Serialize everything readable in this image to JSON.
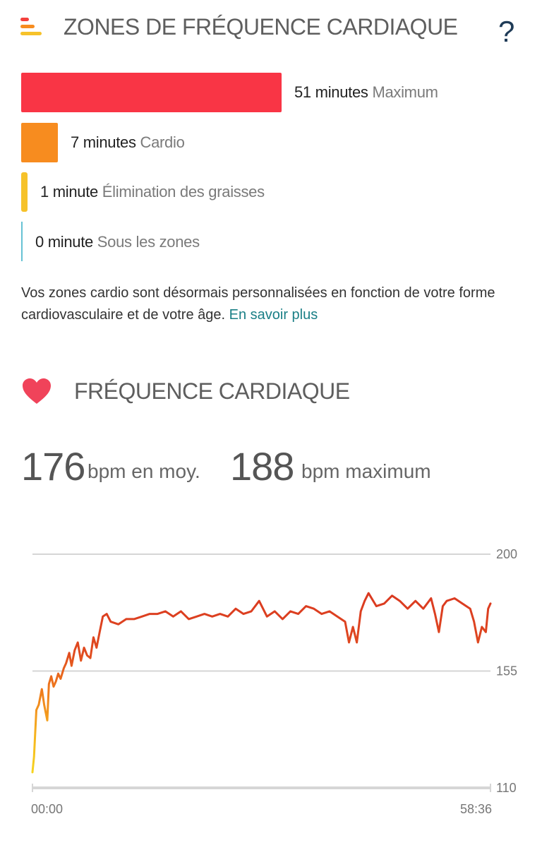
{
  "header": {
    "title": "ZONES DE FRÉQUENCE CARDIAQUE",
    "help_label": "?",
    "icon": "zones-bars-icon"
  },
  "zones": [
    {
      "value": "51 minutes",
      "name": "Maximum",
      "minutes": 51,
      "color": "#f93545"
    },
    {
      "value": "7 minutes",
      "name": "Cardio",
      "minutes": 7,
      "color": "#f78c1f"
    },
    {
      "value": "1 minute",
      "name": "Élimination des graisses",
      "minutes": 1,
      "color": "#f6c22a"
    },
    {
      "value": "0 minute",
      "name": "Sous les zones",
      "minutes": 0,
      "color": "#66c2d4"
    }
  ],
  "description": {
    "text": "Vos zones cardio sont désormais personnalisées en fonction de votre forme cardiovasculaire et de votre âge.",
    "link": "En savoir plus"
  },
  "heart_rate": {
    "title": "FRÉQUENCE CARDIAQUE",
    "icon": "heart-icon",
    "avg_value": "176",
    "avg_unit": "bpm en moy.",
    "max_value": "188",
    "max_unit": "bpm maximum"
  },
  "chart_data": {
    "type": "line",
    "x_start_label": "00:00",
    "x_end_label": "58:36",
    "xlim_minutes": [
      0,
      58.6
    ],
    "ylim": [
      110,
      200
    ],
    "y_ticks": [
      "200",
      "155",
      "110"
    ],
    "grid": true,
    "series": [
      {
        "x": [
          0,
          0.2,
          0.3,
          0.5,
          0.8,
          1.2,
          1.5,
          1.9,
          2.1,
          2.4,
          2.7,
          3.0,
          3.3,
          3.6,
          4.0,
          4.3,
          4.7,
          5.0,
          5.4,
          5.8,
          6.2,
          6.6,
          7.0,
          7.4,
          7.8,
          8.2,
          8.6,
          9.0,
          9.5,
          10,
          11,
          12,
          13,
          14,
          15,
          16,
          17,
          18,
          19,
          20,
          21,
          22,
          23,
          24,
          25,
          26,
          27,
          28,
          29,
          30,
          31,
          32,
          33,
          34,
          35,
          36,
          37,
          38,
          39,
          40,
          40.5,
          41,
          41.5,
          42,
          42.5,
          43,
          44,
          45,
          46,
          47,
          48,
          49,
          50,
          51,
          51.5,
          52,
          52.5,
          53,
          54,
          55,
          56,
          56.5,
          57,
          57.5,
          58,
          58.3,
          58.6
        ],
        "y": [
          116,
          122,
          128,
          140,
          142,
          148,
          142,
          136,
          150,
          153,
          149,
          151,
          154,
          152,
          156,
          158,
          162,
          157,
          163,
          166,
          159,
          164,
          161,
          160,
          168,
          164,
          170,
          176,
          177,
          174,
          173,
          175,
          175,
          176,
          177,
          177,
          178,
          176,
          178,
          175,
          176,
          177,
          176,
          177,
          176,
          179,
          177,
          178,
          182,
          176,
          178,
          175,
          178,
          177,
          180,
          179,
          177,
          178,
          176,
          174,
          166,
          172,
          166,
          178,
          182,
          185,
          180,
          181,
          184,
          182,
          179,
          182,
          179,
          183,
          177,
          170,
          180,
          182,
          183,
          181,
          179,
          174,
          166,
          172,
          170,
          179,
          181
        ]
      }
    ]
  }
}
